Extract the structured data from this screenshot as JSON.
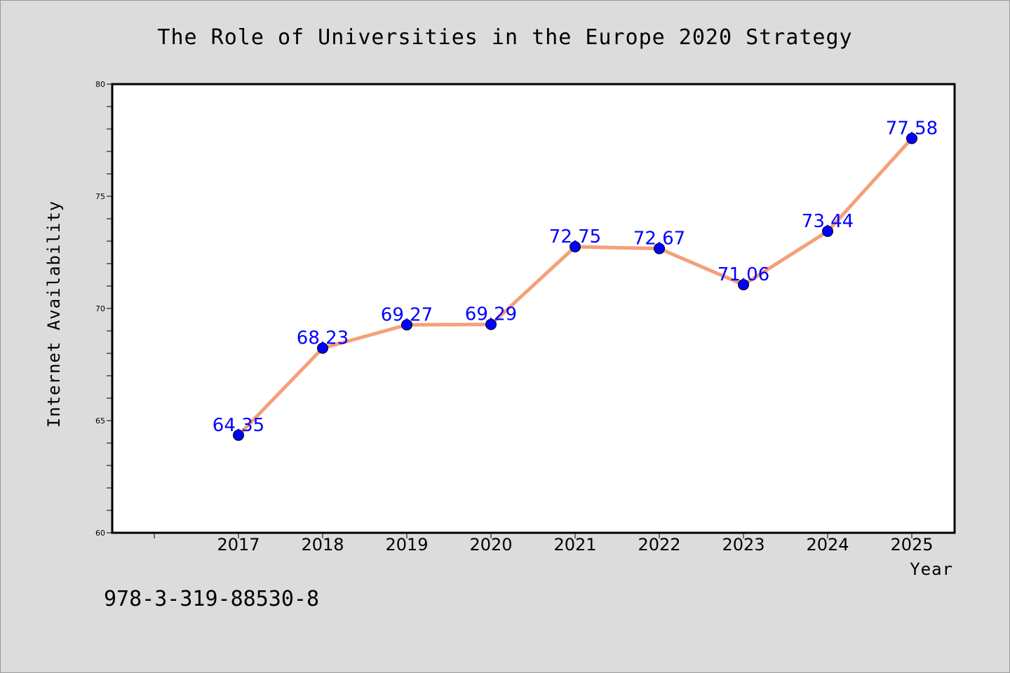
{
  "chart_data": {
    "type": "line",
    "title": "The Role of Universities in the Europe 2020 Strategy",
    "xlabel": "Year",
    "ylabel": "Internet Availability",
    "categories": [
      "2017",
      "2018",
      "2019",
      "2020",
      "2021",
      "2022",
      "2023",
      "2024",
      "2025"
    ],
    "series": [
      {
        "values": [
          64.35,
          68.23,
          69.27,
          69.29,
          72.75,
          72.67,
          71.06,
          73.44,
          77.58
        ],
        "labels": [
          "64.35",
          "68.23",
          "69.27",
          "69.29",
          "72.75",
          "72.67",
          "71.06",
          "73.44",
          "77.58"
        ],
        "line_color": "#f4a07a",
        "marker_color": "#0000ff",
        "label_color": "#0000ff"
      }
    ],
    "ylim": [
      60,
      80
    ],
    "yticks": [
      "60",
      "65",
      "70",
      "75",
      "80"
    ],
    "grid": false,
    "legend": "none"
  },
  "footnote": "978-3-319-88530-8",
  "colors": {
    "background": "#dcdcdc",
    "plot_background": "#ffffff"
  }
}
